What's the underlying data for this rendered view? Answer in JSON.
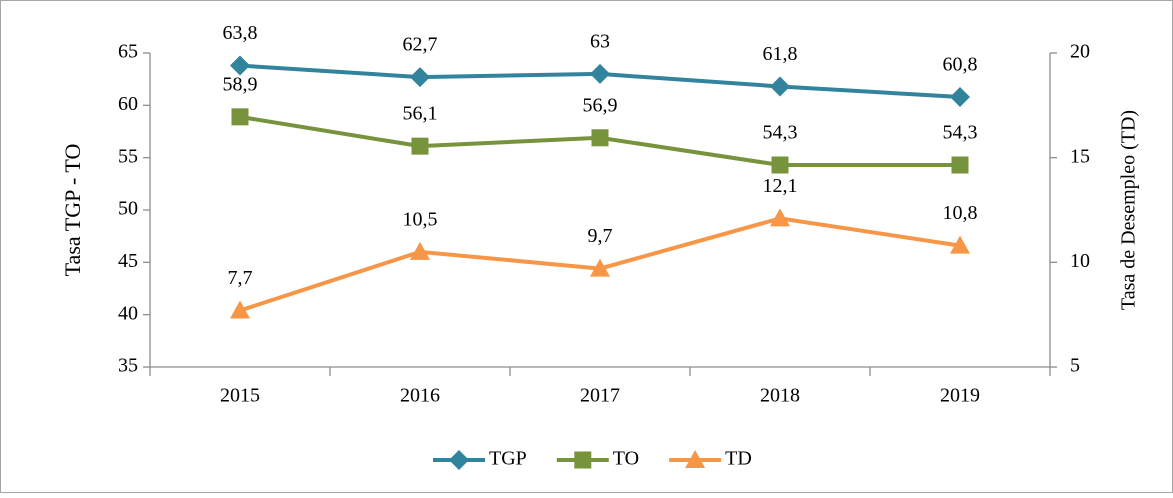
{
  "chart_data": {
    "type": "line",
    "categories": [
      "2015",
      "2016",
      "2017",
      "2018",
      "2019"
    ],
    "y_label": "Tasa  TGP - TO",
    "y2_label": "Tasa de Desempleo (TD)",
    "ylim": [
      35,
      65
    ],
    "yticks": [
      35,
      40,
      45,
      50,
      55,
      60,
      65
    ],
    "y2lim": [
      5,
      20
    ],
    "y2ticks": [
      5,
      10,
      15,
      20
    ],
    "legend": "bottom",
    "series": [
      {
        "name": "TGP",
        "color": "#31849b",
        "marker": "diamond",
        "values": [
          63.8,
          62.7,
          63,
          61.8,
          60.8
        ],
        "value_labels": [
          "63,8",
          "62,7",
          "63",
          "61,8",
          "60,8"
        ]
      },
      {
        "name": "TO",
        "color": "#77933c",
        "marker": "square",
        "values": [
          58.9,
          56.1,
          56.9,
          54.3,
          54.3
        ],
        "value_labels": [
          "58,9",
          "56,1",
          "56,9",
          "54,3",
          "54,3"
        ]
      },
      {
        "name": "TD",
        "color": "#f79646",
        "marker": "triangle",
        "axis": "y2",
        "values": [
          7.7,
          10.5,
          9.7,
          12.1,
          10.8
        ],
        "value_labels": [
          "7,7",
          "10,5",
          "9,7",
          "12,1",
          "10,8"
        ]
      }
    ]
  }
}
